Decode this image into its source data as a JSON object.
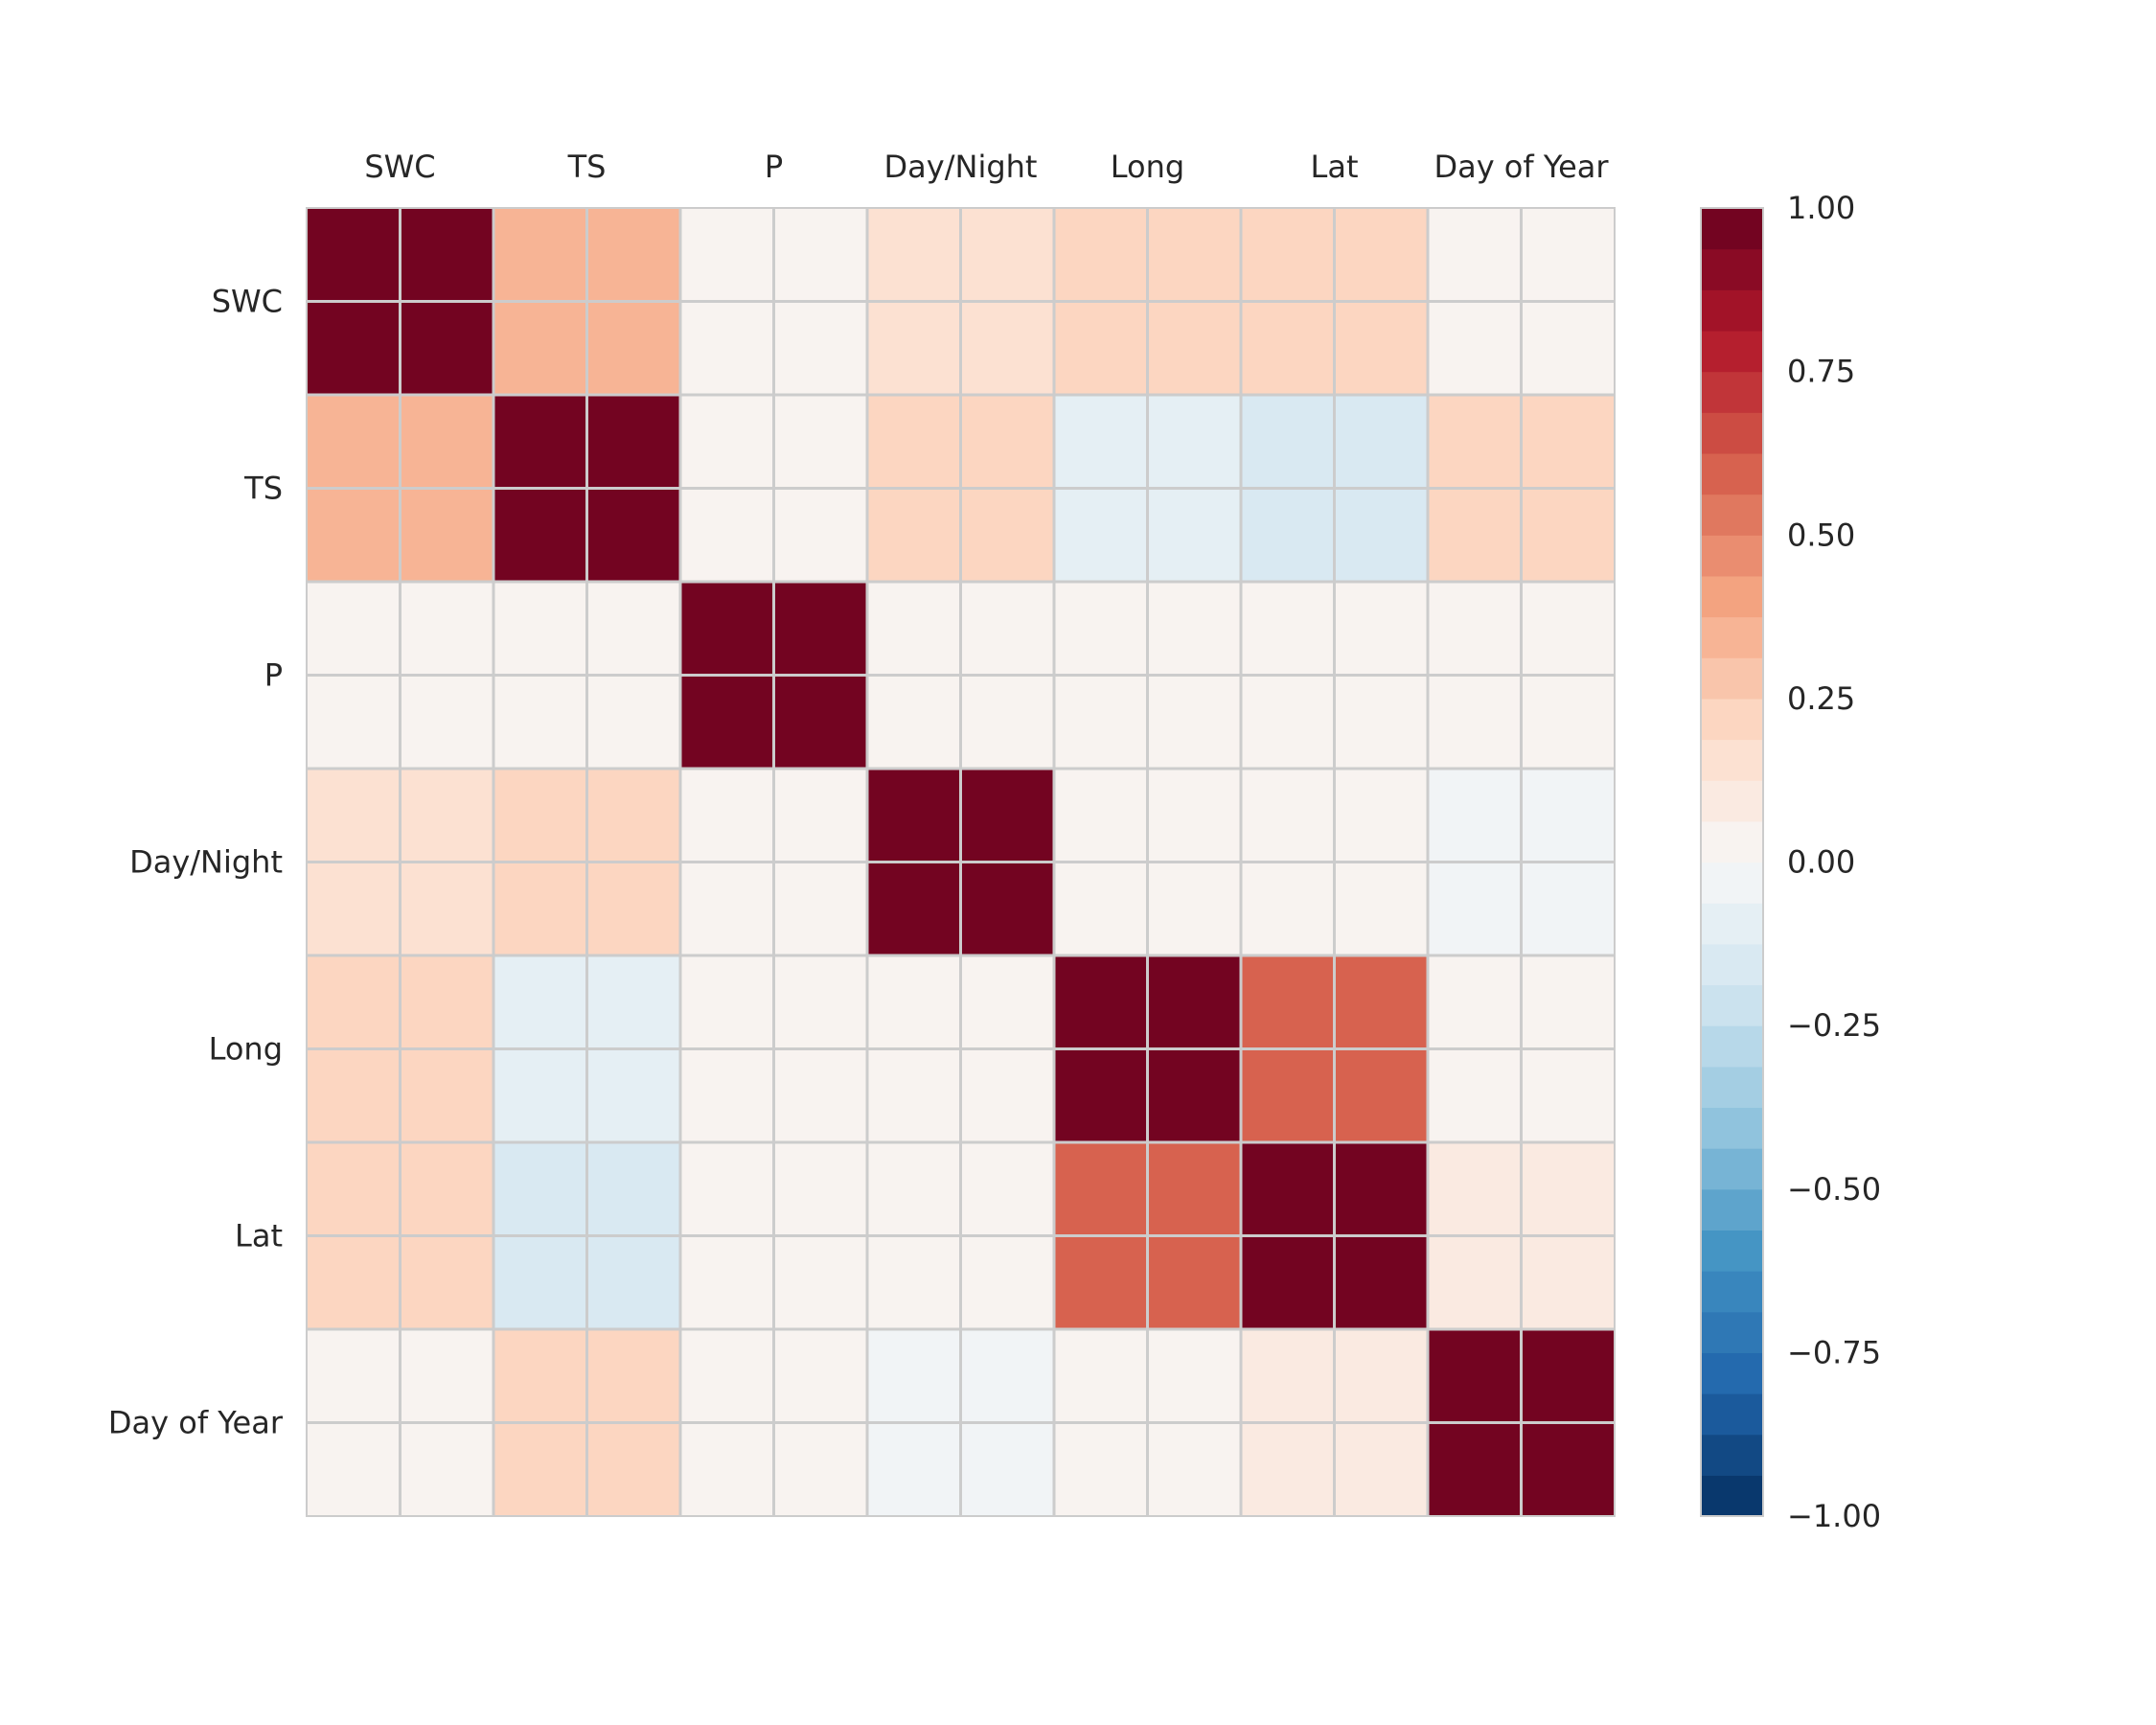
{
  "chart_data": {
    "type": "heatmap",
    "title": "",
    "variables": [
      "SWC",
      "TS",
      "P",
      "Day/Night",
      "Long",
      "Lat",
      "Day of Year"
    ],
    "matrix": [
      [
        1.0,
        0.37,
        0.06,
        0.13,
        0.2,
        0.19,
        0.06
      ],
      [
        0.37,
        1.0,
        0.0,
        0.24,
        -0.1,
        -0.16,
        0.2
      ],
      [
        0.06,
        0.0,
        1.0,
        0.0,
        0.0,
        0.06,
        0.0
      ],
      [
        0.13,
        0.24,
        0.0,
        1.0,
        0.0,
        0.0,
        -0.05
      ],
      [
        0.2,
        -0.1,
        0.0,
        0.0,
        1.0,
        0.6,
        0.0
      ],
      [
        0.19,
        -0.16,
        0.06,
        0.0,
        0.6,
        1.0,
        0.07
      ],
      [
        0.06,
        0.2,
        0.0,
        -0.05,
        0.0,
        0.07,
        1.0
      ]
    ],
    "colorbar": {
      "vmin": -1.0,
      "vmax": 1.0,
      "levels": 32,
      "ticks": [
        1.0,
        0.75,
        0.5,
        0.25,
        0.0,
        -0.25,
        -0.5,
        -0.75,
        -1.0
      ],
      "tick_labels": [
        "1.00",
        "0.75",
        "0.50",
        "0.25",
        "0.00",
        "−0.25",
        "−0.50",
        "−0.75",
        "−1.00"
      ],
      "colormap": "RdBu_r",
      "color_stops": [
        "#053061",
        "#2166ac",
        "#4393c3",
        "#92c5de",
        "#d1e5f0",
        "#f7f7f7",
        "#fddbc7",
        "#f4a582",
        "#d6604d",
        "#b2182b",
        "#67001f"
      ]
    },
    "grid": true,
    "x_tick_position": "top"
  }
}
